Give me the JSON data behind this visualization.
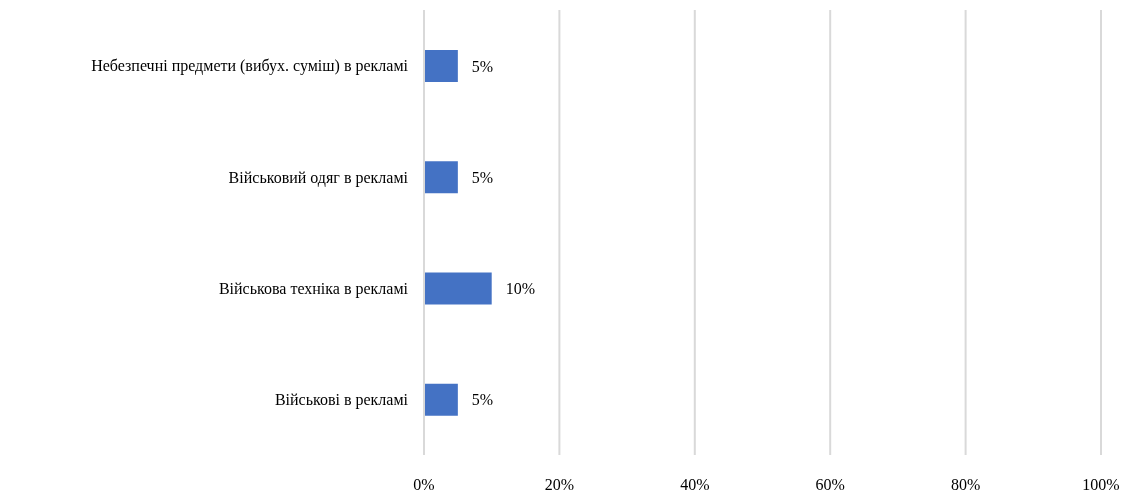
{
  "chart_data": {
    "type": "bar",
    "orientation": "horizontal",
    "categories": [
      "Небезпечні предмети (вибух. суміш) в рекламі",
      "Військовий одяг в рекламі",
      "Військова техніка в рекламі",
      "Військові в рекламі"
    ],
    "values": [
      5,
      5,
      10,
      5
    ],
    "color": "#4472c4",
    "value_labels": [
      "5%",
      "5%",
      "10%",
      "5%"
    ],
    "xlim": [
      0,
      100
    ],
    "xticks": [
      {
        "value": 0,
        "label": "0%"
      },
      {
        "value": 20,
        "label": "20%"
      },
      {
        "value": 40,
        "label": "40%"
      },
      {
        "value": 60,
        "label": "60%"
      },
      {
        "value": 80,
        "label": "80%"
      },
      {
        "value": 100,
        "label": "100%"
      }
    ],
    "grid": "x",
    "legend": false
  }
}
